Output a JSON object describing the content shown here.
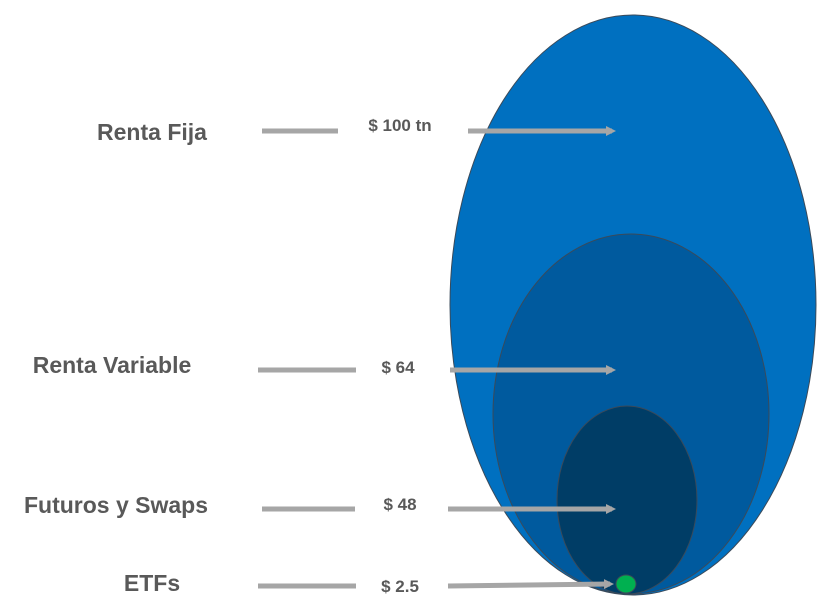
{
  "diagram": {
    "levels": [
      {
        "label": "Renta Fija",
        "value": "$ 100 tn",
        "color": "#0070c0"
      },
      {
        "label": "Renta Variable",
        "value": "$ 64",
        "color": "#005a9e"
      },
      {
        "label": "Futuros y Swaps",
        "value": "$ 48",
        "color": "#003d66"
      },
      {
        "label": "ETFs",
        "value": "$ 2.5",
        "color": "#00b050"
      }
    ],
    "arrow_color": "#a6a6a6",
    "text_color": "#595959"
  }
}
